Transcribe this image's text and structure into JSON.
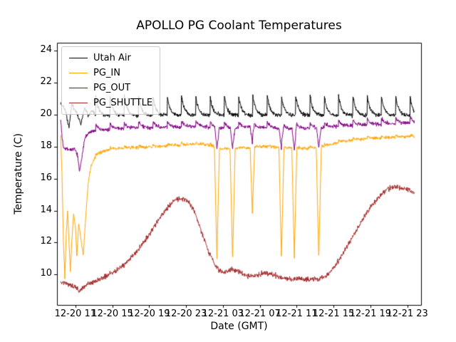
{
  "chart_data": {
    "type": "line",
    "title": "APOLLO PG Coolant Temperatures",
    "xlabel": "Date (GMT)",
    "ylabel": "Temperature (C)",
    "x_hours_origin": "12-20 09:00",
    "xlim": [
      0,
      39.5
    ],
    "ylim": [
      8.1,
      24.5
    ],
    "x_ticks": [
      2,
      6,
      10,
      14,
      18,
      22,
      26,
      30,
      34,
      38
    ],
    "x_ticklabels": [
      "12-20 11",
      "12-20 15",
      "12-20 19",
      "12-20 23",
      "12-21 03",
      "12-21 07",
      "12-21 11",
      "12-21 15",
      "12-21 19",
      "12-21 23"
    ],
    "y_ticks": [
      10,
      12,
      14,
      16,
      18,
      20,
      22,
      24
    ],
    "grid": false,
    "legend_position": "upper left",
    "series": [
      {
        "name": "Utah Air",
        "color": "#000000",
        "noise": 0.12,
        "sawtooth": {
          "start": 4.2,
          "period": 1.55,
          "amp": 1.25,
          "decay": 5
        },
        "points": [
          [
            0.4,
            20.7
          ],
          [
            0.9,
            20.3
          ],
          [
            1.3,
            19.2
          ],
          [
            1.6,
            20.6
          ],
          [
            2.1,
            20.2
          ],
          [
            2.6,
            19.4
          ],
          [
            3.0,
            20.5
          ],
          [
            3.4,
            19.9
          ],
          [
            3.8,
            20.3
          ],
          [
            4.2,
            19.95
          ],
          [
            38.8,
            19.95
          ]
        ]
      },
      {
        "name": "PG_IN",
        "color": "#ffa500",
        "noise": 0.1,
        "sawtooth": {
          "start": 4.2,
          "period": 1.55,
          "amp": 0.12,
          "decay": 5
        },
        "dips": [
          {
            "t": 17.35,
            "d": 7.0,
            "w": 0.55
          },
          {
            "t": 19.05,
            "d": 7.0,
            "w": 0.55
          },
          {
            "t": 21.2,
            "d": 4.2,
            "w": 0.5
          },
          {
            "t": 24.35,
            "d": 7.0,
            "w": 0.55
          },
          {
            "t": 25.75,
            "d": 6.9,
            "w": 0.55
          },
          {
            "t": 28.4,
            "d": 7.0,
            "w": 0.55
          }
        ],
        "points": [
          [
            0.4,
            18.7
          ],
          [
            0.55,
            16.0
          ],
          [
            0.7,
            12.0
          ],
          [
            0.85,
            9.8
          ],
          [
            1.0,
            12.5
          ],
          [
            1.15,
            14.0
          ],
          [
            1.3,
            12.0
          ],
          [
            1.45,
            10.2
          ],
          [
            1.6,
            12.0
          ],
          [
            1.8,
            13.8
          ],
          [
            2.0,
            13.0
          ],
          [
            2.15,
            11.1
          ],
          [
            2.35,
            13.2
          ],
          [
            2.6,
            12.2
          ],
          [
            2.85,
            11.2
          ],
          [
            3.1,
            13.5
          ],
          [
            3.4,
            15.8
          ],
          [
            3.7,
            16.8
          ],
          [
            4.1,
            17.3
          ],
          [
            4.6,
            17.6
          ],
          [
            5.5,
            17.8
          ],
          [
            7,
            17.9
          ],
          [
            9,
            17.95
          ],
          [
            11,
            18.0
          ],
          [
            13,
            18.1
          ],
          [
            15,
            18.15
          ],
          [
            16.5,
            18.1
          ],
          [
            17.8,
            17.85
          ],
          [
            19.4,
            17.85
          ],
          [
            20.8,
            17.95
          ],
          [
            22.5,
            18.0
          ],
          [
            24,
            17.95
          ],
          [
            26,
            17.9
          ],
          [
            28,
            17.9
          ],
          [
            29.2,
            18.05
          ],
          [
            30.5,
            18.25
          ],
          [
            32,
            18.4
          ],
          [
            33.5,
            18.5
          ],
          [
            35.5,
            18.55
          ],
          [
            37,
            18.6
          ],
          [
            38.8,
            18.65
          ]
        ]
      },
      {
        "name": "PG_OUT",
        "color": "#800080",
        "noise": 0.12,
        "sawtooth": {
          "start": 4.2,
          "period": 1.55,
          "amp": 0.4,
          "decay": 5
        },
        "dips": [
          {
            "t": 17.35,
            "d": 1.3,
            "w": 0.5
          },
          {
            "t": 19.05,
            "d": 1.3,
            "w": 0.5
          },
          {
            "t": 21.2,
            "d": 1.0,
            "w": 0.45
          },
          {
            "t": 24.35,
            "d": 1.3,
            "w": 0.5
          },
          {
            "t": 25.75,
            "d": 1.3,
            "w": 0.5
          },
          {
            "t": 28.4,
            "d": 1.3,
            "w": 0.5
          }
        ],
        "points": [
          [
            0.4,
            19.7
          ],
          [
            0.55,
            18.6
          ],
          [
            0.7,
            17.9
          ],
          [
            1.1,
            17.85
          ],
          [
            1.5,
            17.8
          ],
          [
            1.9,
            17.85
          ],
          [
            2.2,
            17.5
          ],
          [
            2.45,
            16.45
          ],
          [
            2.7,
            17.3
          ],
          [
            3.0,
            18.5
          ],
          [
            3.4,
            18.85
          ],
          [
            4.0,
            19.0
          ],
          [
            5,
            19.05
          ],
          [
            6,
            19.1
          ],
          [
            8,
            19.15
          ],
          [
            10,
            19.2
          ],
          [
            12,
            19.2
          ],
          [
            14,
            19.25
          ],
          [
            16,
            19.25
          ],
          [
            17.5,
            19.15
          ],
          [
            19.5,
            19.15
          ],
          [
            21,
            19.2
          ],
          [
            22.5,
            19.2
          ],
          [
            24,
            19.15
          ],
          [
            25.5,
            19.1
          ],
          [
            27,
            19.15
          ],
          [
            28.8,
            19.15
          ],
          [
            30,
            19.25
          ],
          [
            31.5,
            19.3
          ],
          [
            33,
            19.35
          ],
          [
            35,
            19.4
          ],
          [
            37,
            19.45
          ],
          [
            38.8,
            19.5
          ]
        ]
      },
      {
        "name": "PG_SHUTTLE",
        "color": "#a52a2a",
        "noise": 0.16,
        "points": [
          [
            0.4,
            9.5
          ],
          [
            0.8,
            9.45
          ],
          [
            1.2,
            9.4
          ],
          [
            1.6,
            9.35
          ],
          [
            2.0,
            9.2
          ],
          [
            2.4,
            8.95
          ],
          [
            2.7,
            9.1
          ],
          [
            3.0,
            9.3
          ],
          [
            3.5,
            9.45
          ],
          [
            4.0,
            9.55
          ],
          [
            5.0,
            9.8
          ],
          [
            6.0,
            10.1
          ],
          [
            7.0,
            10.5
          ],
          [
            8.0,
            11.0
          ],
          [
            9.0,
            11.7
          ],
          [
            10.0,
            12.5
          ],
          [
            11.0,
            13.4
          ],
          [
            12.0,
            14.2
          ],
          [
            12.8,
            14.65
          ],
          [
            13.4,
            14.8
          ],
          [
            14.0,
            14.7
          ],
          [
            14.6,
            14.3
          ],
          [
            15.2,
            13.5
          ],
          [
            15.8,
            12.5
          ],
          [
            16.4,
            11.5
          ],
          [
            17.0,
            10.8
          ],
          [
            17.5,
            10.3
          ],
          [
            18.0,
            10.15
          ],
          [
            18.5,
            10.2
          ],
          [
            19.0,
            10.3
          ],
          [
            19.5,
            10.25
          ],
          [
            20.0,
            10.1
          ],
          [
            20.5,
            9.95
          ],
          [
            21.0,
            9.9
          ],
          [
            21.8,
            10.0
          ],
          [
            22.5,
            10.1
          ],
          [
            23.2,
            10.05
          ],
          [
            24.0,
            9.85
          ],
          [
            24.6,
            9.75
          ],
          [
            25.5,
            9.7
          ],
          [
            26.5,
            9.75
          ],
          [
            27.5,
            9.7
          ],
          [
            28.5,
            9.75
          ],
          [
            29.2,
            9.9
          ],
          [
            30.0,
            10.4
          ],
          [
            30.8,
            11.1
          ],
          [
            31.6,
            11.9
          ],
          [
            32.4,
            12.7
          ],
          [
            33.2,
            13.5
          ],
          [
            34.0,
            14.2
          ],
          [
            34.8,
            14.8
          ],
          [
            35.5,
            15.2
          ],
          [
            36.2,
            15.45
          ],
          [
            36.8,
            15.5
          ],
          [
            37.4,
            15.4
          ],
          [
            38.0,
            15.3
          ],
          [
            38.8,
            15.15
          ]
        ]
      }
    ]
  }
}
